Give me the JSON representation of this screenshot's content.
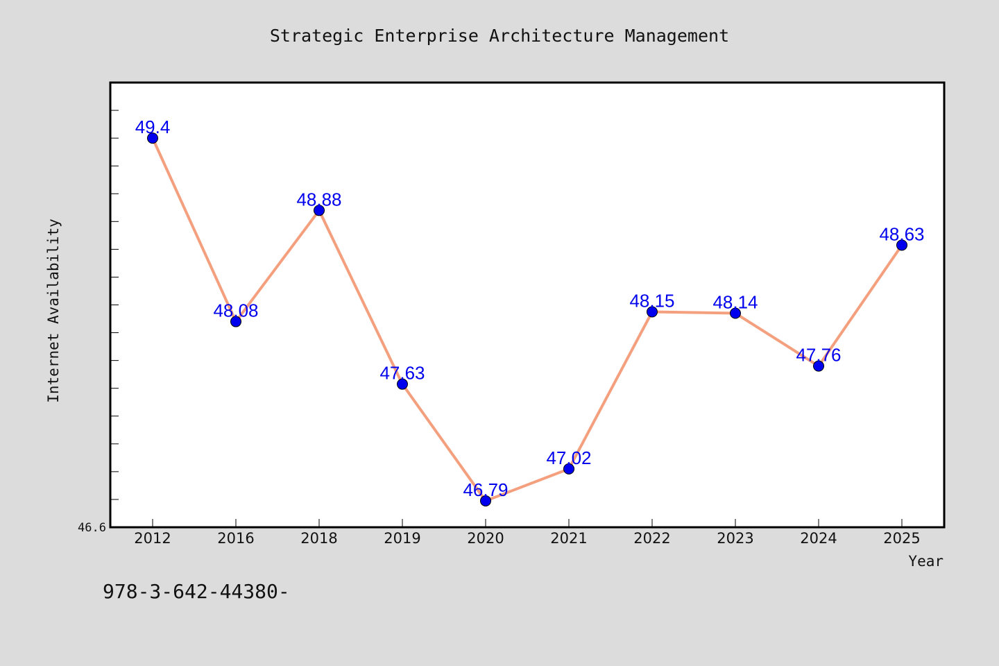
{
  "chart_data": {
    "type": "line",
    "title": "Strategic Enterprise Architecture Management",
    "xlabel": "Year",
    "ylabel": "Internet Availability",
    "categories": [
      "2012",
      "2016",
      "2018",
      "2019",
      "2020",
      "2021",
      "2022",
      "2023",
      "2024",
      "2025"
    ],
    "series": [
      {
        "values": [
          49.4,
          48.08,
          48.88,
          47.63,
          46.79,
          47.02,
          48.15,
          48.14,
          47.76,
          48.63
        ],
        "labels": [
          "49.4",
          "48.08",
          "48.88",
          "47.63",
          "46.79",
          "47.02",
          "48.15",
          "48.14",
          "47.76",
          "48.63"
        ],
        "line_color": "#f4a07e",
        "marker_color": "#0000ee",
        "label_color": "#0000ee"
      }
    ],
    "ylim": [
      46.6,
      49.8
    ],
    "y_tick_labels": [
      "46.6"
    ],
    "grid": false,
    "legend": "none"
  },
  "footer": {
    "text": "978-3-642-44380-"
  },
  "colors": {
    "background": "#dcdcdc",
    "plot_background": "#ffffff",
    "axis": "#000000"
  }
}
